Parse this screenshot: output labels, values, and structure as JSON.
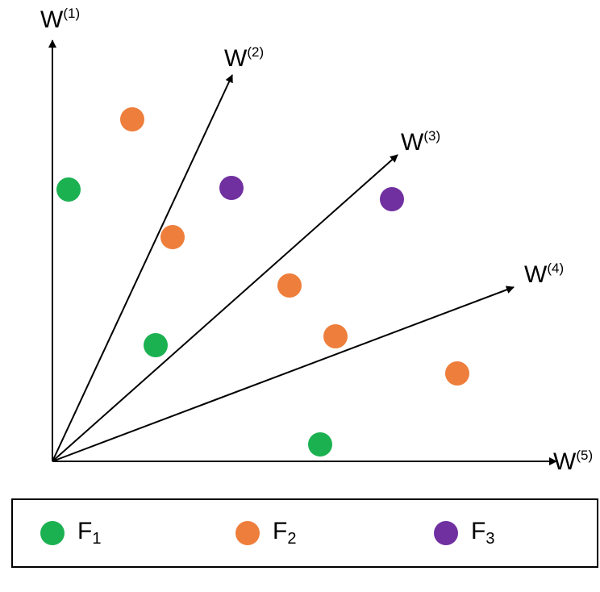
{
  "colors": {
    "F1": "#1bb151",
    "F2": "#ee7e3b",
    "F3": "#7030a0",
    "axis": "#000000"
  },
  "vectors": [
    {
      "id": "w1",
      "base": "W",
      "sup": "(1)"
    },
    {
      "id": "w2",
      "base": "W",
      "sup": "(2)"
    },
    {
      "id": "w3",
      "base": "W",
      "sup": "(3)"
    },
    {
      "id": "w4",
      "base": "W",
      "sup": "(4)"
    },
    {
      "id": "w5",
      "base": "W",
      "sup": "(5)"
    }
  ],
  "points": [
    {
      "class": "F1"
    },
    {
      "class": "F1"
    },
    {
      "class": "F1"
    },
    {
      "class": "F2"
    },
    {
      "class": "F2"
    },
    {
      "class": "F2"
    },
    {
      "class": "F2"
    },
    {
      "class": "F2"
    },
    {
      "class": "F3"
    },
    {
      "class": "F3"
    }
  ],
  "legend": [
    {
      "class": "F1",
      "base": "F",
      "sub": "1"
    },
    {
      "class": "F2",
      "base": "F",
      "sub": "2"
    },
    {
      "class": "F3",
      "base": "F",
      "sub": "3"
    }
  ]
}
